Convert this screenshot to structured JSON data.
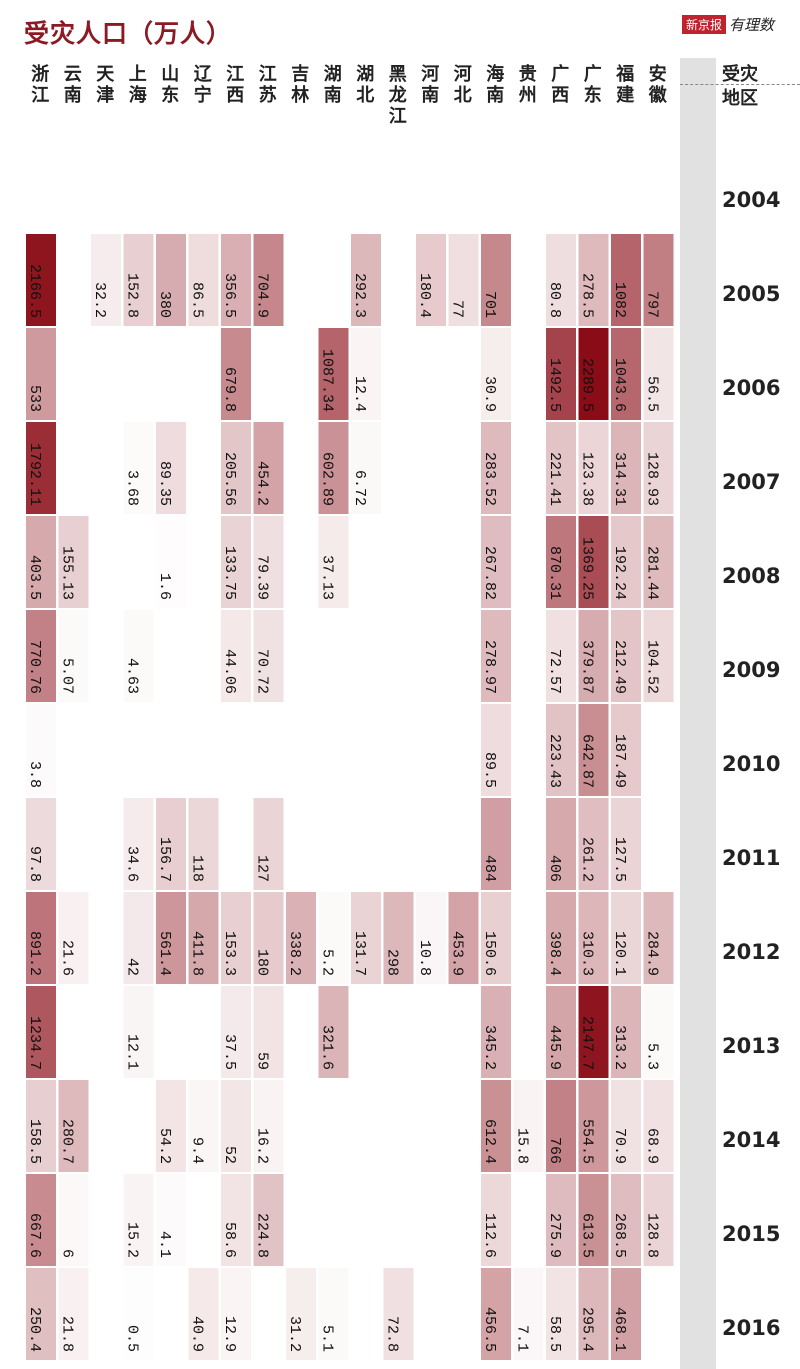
{
  "title": "受灾人口（万人）",
  "logo": {
    "box": "新京报",
    "text": "有理数"
  },
  "chart_data": {
    "type": "heatmap",
    "title": "受灾人口（万人）",
    "corner_label": [
      "受灾",
      "地区"
    ],
    "provinces": [
      "浙江",
      "云南",
      "天津",
      "上海",
      "山东",
      "辽宁",
      "江西",
      "江苏",
      "吉林",
      "湖南",
      "湖北",
      "黑龙江",
      "河南",
      "河北",
      "海南",
      "贵州",
      "广西",
      "广东",
      "福建",
      "安徽"
    ],
    "years": [
      "2004",
      "2005",
      "2006",
      "2007",
      "2008",
      "2009",
      "2010",
      "2011",
      "2012",
      "2013",
      "2014",
      "2015",
      "2016"
    ],
    "values": [
      [
        null,
        null,
        null,
        null,
        null,
        null,
        null,
        null,
        null,
        null,
        null,
        null,
        null,
        null,
        null,
        null,
        null,
        null,
        null,
        null
      ],
      [
        "2166.5",
        null,
        "32.2",
        "152.8",
        "380",
        "86.5",
        "356.5",
        "704.9",
        null,
        null,
        "292.3",
        null,
        "180.4",
        "77",
        "701",
        null,
        "80.8",
        "278.5",
        "1082",
        "797"
      ],
      [
        "533",
        null,
        null,
        null,
        null,
        null,
        "679.8",
        null,
        null,
        "1087.34",
        "12.4",
        null,
        null,
        null,
        "30.9",
        null,
        "1492.5",
        "2289.5",
        "1043.6",
        "56.5"
      ],
      [
        "1792.11",
        null,
        null,
        "3.68",
        "89.35",
        null,
        "205.56",
        "454.2",
        null,
        "602.89",
        "6.72",
        null,
        null,
        null,
        "283.52",
        null,
        "221.41",
        "123.38",
        "314.31",
        "128.93"
      ],
      [
        "403.5",
        "155.13",
        null,
        null,
        "1.6",
        null,
        "133.75",
        "79.39",
        null,
        "37.13",
        null,
        null,
        null,
        null,
        "267.82",
        null,
        "870.31",
        "1369.25",
        "192.24",
        "281.44"
      ],
      [
        "770.76",
        "5.07",
        null,
        "4.63",
        null,
        null,
        "44.06",
        "70.72",
        null,
        null,
        null,
        null,
        null,
        null,
        "278.97",
        null,
        "72.57",
        "379.87",
        "212.49",
        "104.52"
      ],
      [
        "3.8",
        null,
        null,
        null,
        null,
        null,
        null,
        null,
        null,
        null,
        null,
        null,
        null,
        null,
        "89.5",
        null,
        "223.43",
        "642.87",
        "187.49",
        null
      ],
      [
        "97.8",
        null,
        null,
        "34.6",
        "156.7",
        "118",
        null,
        "127",
        null,
        null,
        null,
        null,
        null,
        null,
        "484",
        null,
        "406",
        "261.2",
        "127.5",
        null
      ],
      [
        "891.2",
        "21.6",
        null,
        "42",
        "561.4",
        "411.8",
        "153.3",
        "180",
        "338.2",
        "5.2",
        "131.7",
        "298",
        "10.8",
        "453.9",
        "150.6",
        null,
        "398.4",
        "310.3",
        "120.1",
        "284.9"
      ],
      [
        "1234.7",
        null,
        null,
        "12.1",
        null,
        null,
        "37.5",
        "59",
        null,
        "321.6",
        null,
        null,
        null,
        null,
        "345.2",
        null,
        "445.9",
        "2147.7",
        "313.2",
        "5.3"
      ],
      [
        "158.5",
        "280.7",
        null,
        null,
        "54.2",
        "9.4",
        "52",
        "16.2",
        null,
        null,
        null,
        null,
        null,
        null,
        "612.4",
        "15.8",
        "766",
        "554.5",
        "70.9",
        "68.9"
      ],
      [
        "667.6",
        "6",
        null,
        "15.2",
        "4.1",
        null,
        "58.6",
        "224.8",
        null,
        null,
        null,
        null,
        null,
        null,
        "112.6",
        null,
        "275.9",
        "613.5",
        "268.5",
        "128.8"
      ],
      [
        "250.4",
        "21.8",
        null,
        "0.5",
        null,
        "40.9",
        "12.9",
        null,
        "31.2",
        "5.1",
        null,
        "72.8",
        null,
        null,
        "456.5",
        "7.1",
        "58.5",
        "295.4",
        "468.1",
        null
      ]
    ],
    "color_scale": {
      "low": "#ffffff",
      "high": "#8a0c16"
    },
    "max_value": 2289.5
  }
}
